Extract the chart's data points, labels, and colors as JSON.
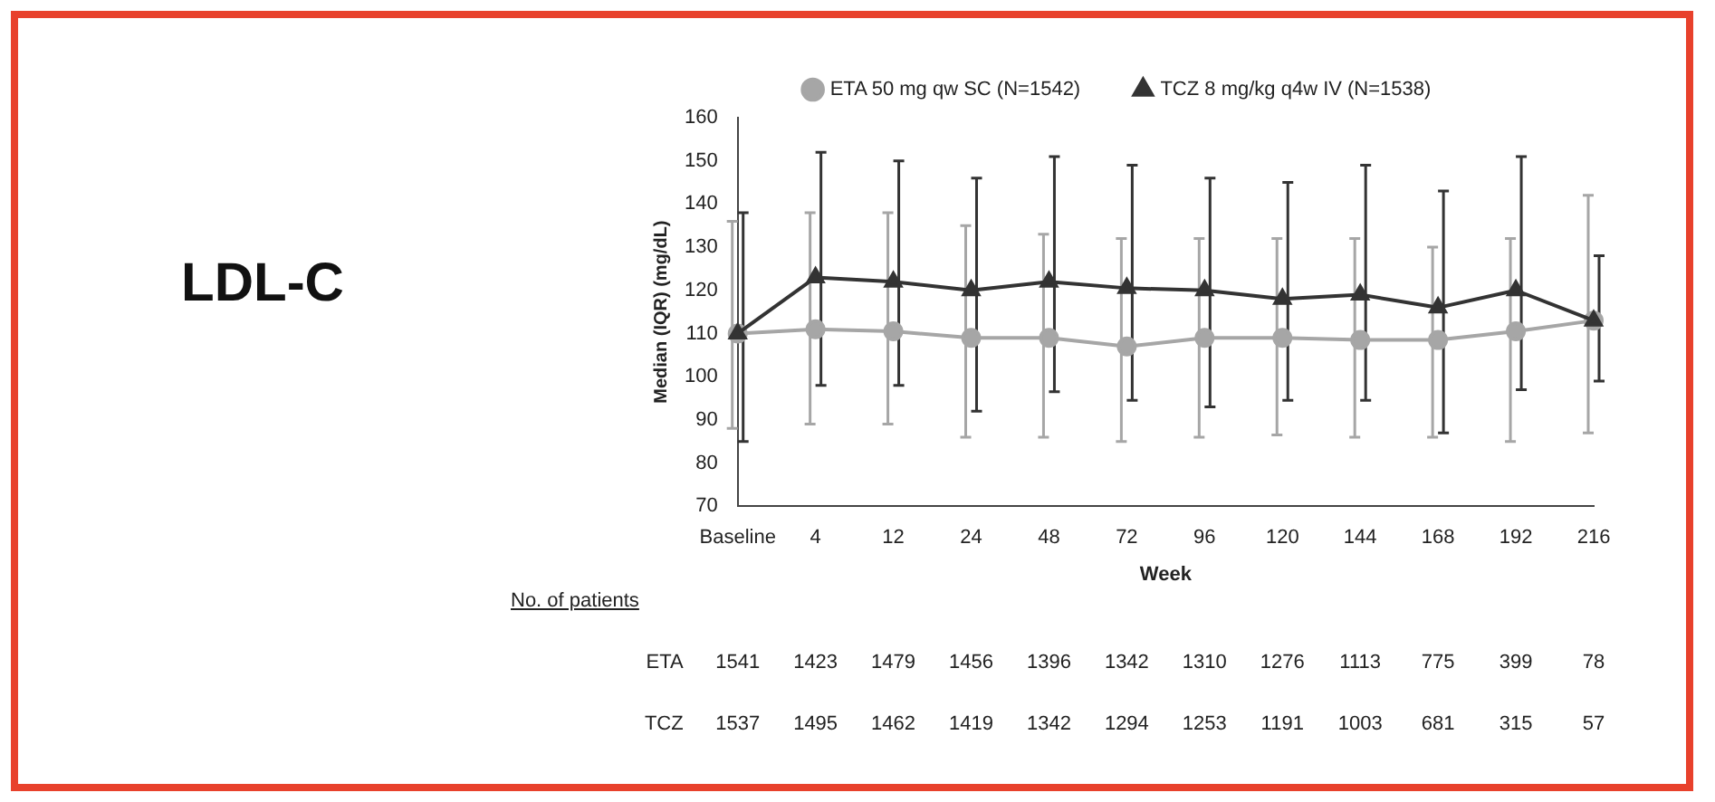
{
  "chart_data": {
    "type": "line",
    "title": "LDL-C",
    "xlabel": "Week",
    "ylabel": "Median (IQR) (mg/dL)",
    "categories": [
      "Baseline",
      "4",
      "12",
      "24",
      "48",
      "72",
      "96",
      "120",
      "144",
      "168",
      "192",
      "216"
    ],
    "series": [
      {
        "name": "ETA 50 mg qw SC (N=1542)",
        "color": "#a6a6a6",
        "marker": "circle",
        "values": [
          110,
          111,
          110.5,
          109,
          109,
          107,
          109,
          109,
          108.5,
          108.5,
          110.5,
          113
        ],
        "errors": [
          [
            88,
            136
          ],
          [
            89,
            138
          ],
          [
            89,
            138
          ],
          [
            86,
            135
          ],
          [
            86,
            133
          ],
          [
            85,
            132
          ],
          [
            86,
            132
          ],
          [
            86.5,
            132
          ],
          [
            86,
            132
          ],
          [
            86,
            130
          ],
          [
            85,
            132
          ],
          [
            87,
            142
          ]
        ]
      },
      {
        "name": "TCZ 8 mg/kg q4w IV (N=1538)",
        "color": "#333333",
        "marker": "triangle",
        "values": [
          110,
          123,
          122,
          120,
          122,
          120.5,
          120,
          118,
          119,
          116,
          120,
          113
        ],
        "errors": [
          [
            85,
            138
          ],
          [
            98,
            152
          ],
          [
            98,
            150
          ],
          [
            92,
            146
          ],
          [
            96.5,
            151
          ],
          [
            94.5,
            149
          ],
          [
            93,
            146
          ],
          [
            94.5,
            145
          ],
          [
            94.5,
            149
          ],
          [
            87,
            143
          ],
          [
            97,
            151
          ],
          [
            99,
            128
          ]
        ]
      }
    ],
    "ylim": [
      70,
      160
    ],
    "yticks": [
      70,
      80,
      90,
      100,
      110,
      120,
      130,
      140,
      150,
      160
    ],
    "grid": false,
    "legend": "top",
    "annotations": [
      "No. of patients",
      "ETA 1541 1423 1479 1456 1396 1342 1310 1276 1113 775 399 78",
      "TCZ 1537 1495 1462 1419 1342 1294 1253 1191 1003 681 315 57"
    ]
  }
}
